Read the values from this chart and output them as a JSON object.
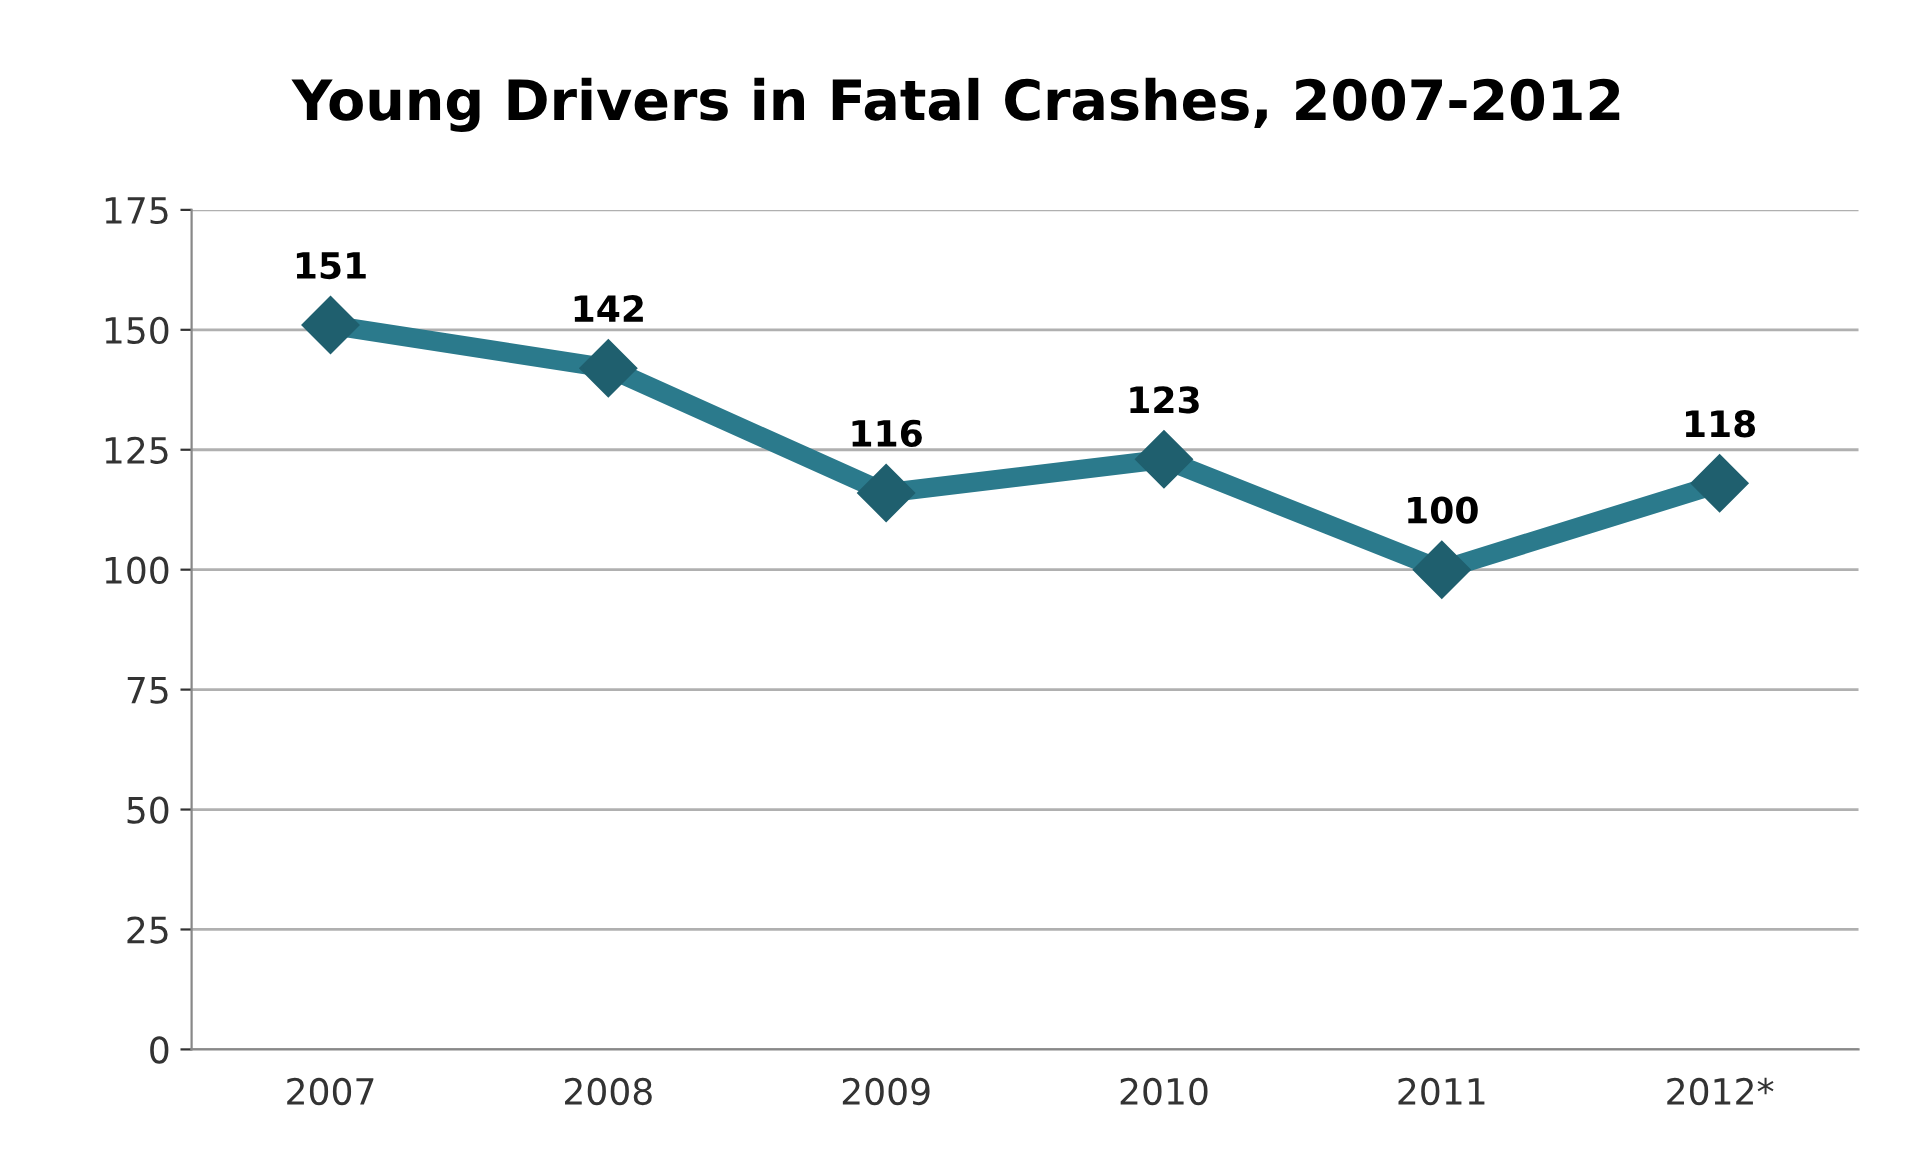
{
  "chart_data": {
    "type": "line",
    "title": "Young Drivers in Fatal Crashes, 2007-2012",
    "categories": [
      "2007",
      "2008",
      "2009",
      "2010",
      "2011",
      "2012*"
    ],
    "series": [
      {
        "color": "#2b7a8c",
        "values": [
          151,
          142,
          116,
          123,
          100,
          118
        ]
      }
    ],
    "ylim": [
      0,
      175
    ],
    "yticks": [
      0,
      25,
      50,
      75,
      100,
      125,
      150,
      175
    ],
    "grid": "y",
    "marker": "diamond",
    "line_style": "solid",
    "data_labels": true,
    "legend": false
  }
}
